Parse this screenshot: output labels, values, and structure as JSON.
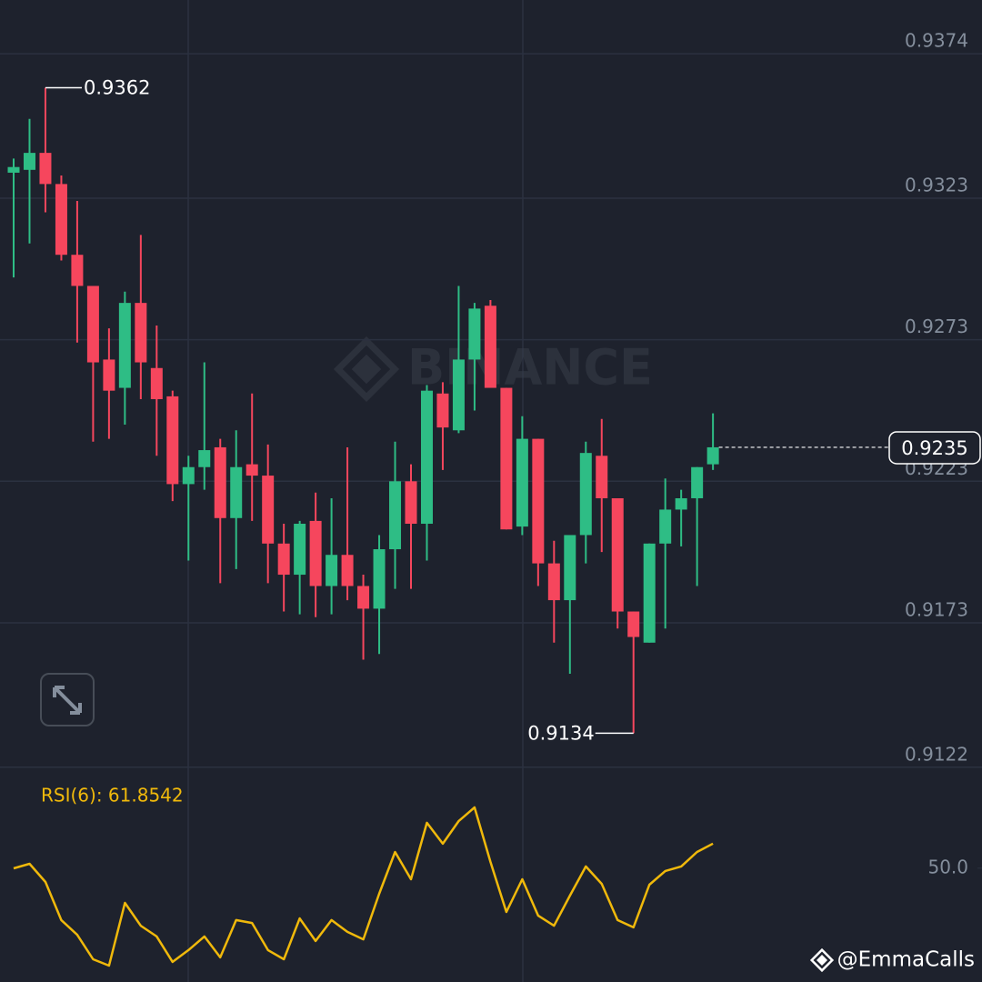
{
  "chart_data": [
    {
      "type": "candlestick",
      "watermark": "BINANCE",
      "credit": "@EmmaCalls",
      "up_color": "#2ebd85",
      "down_color": "#f6465d",
      "open": [
        0.9332,
        0.9333,
        0.9339,
        0.9328,
        0.9303,
        0.9292,
        0.9266,
        0.9256,
        0.9286,
        0.9263,
        0.9253,
        0.9222,
        0.9228,
        0.9235,
        0.921,
        0.9229,
        0.9225,
        0.9201,
        0.919,
        0.9209,
        0.9186,
        0.9197,
        0.9186,
        0.9178,
        0.9199,
        0.9223,
        0.9208,
        0.9254,
        0.9241,
        0.9266,
        0.9285,
        0.9256,
        0.9207,
        0.9238,
        0.9194,
        0.9181,
        0.9204,
        0.9232,
        0.9217,
        0.9177,
        0.9166,
        0.9201,
        0.9213,
        0.9217,
        0.9229
      ],
      "high": [
        0.9337,
        0.9351,
        0.9362,
        0.9331,
        0.9322,
        0.9292,
        0.9277,
        0.929,
        0.931,
        0.9278,
        0.9255,
        0.9232,
        0.9265,
        0.9238,
        0.9241,
        0.9254,
        0.9236,
        0.9208,
        0.9209,
        0.9219,
        0.9217,
        0.9235,
        0.919,
        0.9204,
        0.9237,
        0.9229,
        0.9257,
        0.9258,
        0.9292,
        0.9286,
        0.9287,
        0.9256,
        0.9246,
        0.9238,
        0.9202,
        0.9204,
        0.9237,
        0.9245,
        0.9217,
        0.9177,
        0.9201,
        0.9224,
        0.922,
        0.9228,
        0.9247
      ],
      "low": [
        0.9295,
        0.9307,
        0.9318,
        0.9301,
        0.9272,
        0.9237,
        0.9238,
        0.9243,
        0.9252,
        0.9232,
        0.9216,
        0.9195,
        0.922,
        0.9187,
        0.9192,
        0.9209,
        0.9187,
        0.9177,
        0.9176,
        0.9175,
        0.9176,
        0.9181,
        0.916,
        0.9162,
        0.9185,
        0.9185,
        0.9195,
        0.9227,
        0.924,
        0.9248,
        0.9256,
        0.9206,
        0.9204,
        0.9186,
        0.9166,
        0.9155,
        0.9194,
        0.9198,
        0.9171,
        0.9134,
        0.9166,
        0.9171,
        0.92,
        0.9186,
        0.9227
      ],
      "close": [
        0.9334,
        0.9339,
        0.9328,
        0.9303,
        0.9292,
        0.9265,
        0.9255,
        0.9286,
        0.9265,
        0.9252,
        0.9222,
        0.9228,
        0.9234,
        0.921,
        0.9228,
        0.9225,
        0.9201,
        0.919,
        0.9208,
        0.9186,
        0.9197,
        0.9186,
        0.9178,
        0.9199,
        0.9223,
        0.9208,
        0.9255,
        0.9242,
        0.9266,
        0.9284,
        0.9256,
        0.9206,
        0.9238,
        0.9194,
        0.9181,
        0.9204,
        0.9233,
        0.9217,
        0.9177,
        0.9168,
        0.9201,
        0.9213,
        0.9217,
        0.9228,
        0.9235
      ],
      "ylim": [
        0.912,
        0.9393
      ],
      "yticks": [
        0.9374,
        0.9323,
        0.9273,
        0.9223,
        0.9173,
        0.9122
      ],
      "grid": true,
      "high_label": 0.9362,
      "low_label": 0.9134,
      "last_price": 0.9235
    },
    {
      "type": "line",
      "legend_text": "RSI(6): 61.8542",
      "color": "#f0b90b",
      "values": [
        49.9,
        52.1,
        43.3,
        24.9,
        17.8,
        6.0,
        2.9,
        33.2,
        22.2,
        17.0,
        4.7,
        10.4,
        17.0,
        6.9,
        24.9,
        23.5,
        10.4,
        6.0,
        25.7,
        14.8,
        24.9,
        19.2,
        15.6,
        37.6,
        57.8,
        44.6,
        71.9,
        61.8,
        72.7,
        79.3,
        53.0,
        28.8,
        44.6,
        27.1,
        22.2,
        36.7,
        50.8,
        42.4,
        24.9,
        21.4,
        42.0,
        48.6,
        50.8,
        57.8,
        61.8542
      ],
      "ylim": [
        -5,
        96
      ],
      "yticks": [
        {
          "value": 50,
          "label": "50.0"
        }
      ]
    }
  ]
}
